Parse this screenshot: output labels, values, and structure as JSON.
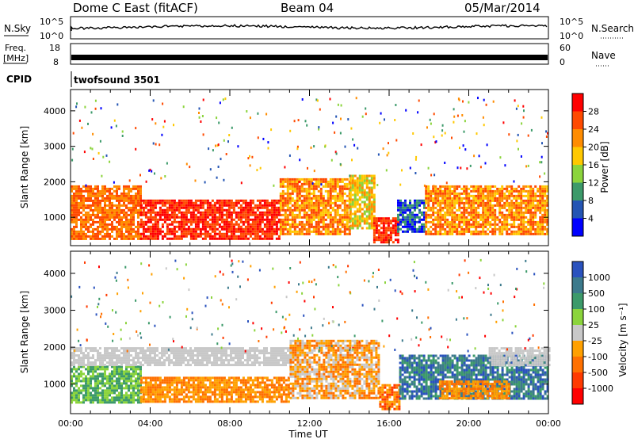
{
  "header": {
    "station": "Dome C East (fitACF)",
    "beam": "Beam 04",
    "date": "05/Mar/2014"
  },
  "noise_panel": {
    "left_label": "N.Sky",
    "right_label": "N.Search",
    "ticks_top": "10^5",
    "ticks_bottom": "10^0"
  },
  "freq_panel": {
    "left_label_line1": "Freq.",
    "left_label_line2": "[MHz]",
    "left_ticks": [
      "18",
      "8"
    ],
    "right_label": "Nave",
    "right_ticks": [
      "60",
      "0"
    ]
  },
  "cpid": {
    "label": "CPID",
    "value": "twofsound 3501"
  },
  "chart_data": [
    {
      "type": "heatmap",
      "name": "power",
      "ylabel": "Slant Range [km]",
      "xlabel": "",
      "x_ticks": [
        "00:00",
        "04:00",
        "08:00",
        "12:00",
        "16:00",
        "20:00",
        "00:00"
      ],
      "x_range_hours": [
        0,
        24
      ],
      "y_ticks": [
        1000,
        2000,
        3000,
        4000
      ],
      "ylim": [
        200,
        4600
      ],
      "colorbar": {
        "label": "Power [dB]",
        "ticks": [
          "28",
          "24",
          "20",
          "16",
          "12",
          "8",
          "4"
        ],
        "colors": [
          "#ff0000",
          "#ff4a00",
          "#ff8c00",
          "#ffc800",
          "#8bd43c",
          "#3c9a6a",
          "#2455b4",
          "#0000ff"
        ]
      },
      "regions": [
        {
          "t0": 0.0,
          "t1": 3.5,
          "r0": 400,
          "r1": 1900,
          "band": [
            1,
            2
          ]
        },
        {
          "t0": 3.5,
          "t1": 10.5,
          "r0": 400,
          "r1": 1500,
          "band": [
            0,
            1
          ]
        },
        {
          "t0": 10.5,
          "t1": 14.0,
          "r0": 500,
          "r1": 2100,
          "band": [
            1,
            3
          ]
        },
        {
          "t0": 14.0,
          "t1": 15.2,
          "r0": 700,
          "r1": 2200,
          "band": [
            2,
            4
          ]
        },
        {
          "t0": 15.2,
          "t1": 16.4,
          "r0": 300,
          "r1": 1000,
          "band": [
            0,
            1
          ]
        },
        {
          "t0": 16.4,
          "t1": 17.8,
          "r0": 600,
          "r1": 1500,
          "band": [
            5,
            7
          ]
        },
        {
          "t0": 17.8,
          "t1": 24.0,
          "r0": 500,
          "r1": 1900,
          "band": [
            1,
            3
          ]
        }
      ]
    },
    {
      "type": "heatmap",
      "name": "velocity",
      "ylabel": "Slant Range [km]",
      "xlabel": "Time UT",
      "x_ticks": [
        "00:00",
        "04:00",
        "08:00",
        "12:00",
        "16:00",
        "20:00",
        "00:00"
      ],
      "x_range_hours": [
        0,
        24
      ],
      "y_ticks": [
        1000,
        2000,
        3000,
        4000
      ],
      "ylim": [
        200,
        4600
      ],
      "colorbar": {
        "label": "Velocity [m s⁻¹]",
        "ticks": [
          "1000",
          "500",
          "100",
          "25",
          "-25",
          "-100",
          "-500",
          "-1000"
        ],
        "colors": [
          "#2a52be",
          "#3c7a8c",
          "#3c9a6a",
          "#8bd43c",
          "#c8c8c8",
          "#ffa000",
          "#ff7000",
          "#ff3a00",
          "#ff0000"
        ]
      },
      "regions": [
        {
          "t0": 0.0,
          "t1": 3.5,
          "r0": 500,
          "r1": 1500,
          "band": [
            2,
            3
          ]
        },
        {
          "t0": 0.0,
          "t1": 11.0,
          "r0": 1500,
          "r1": 2000,
          "band": [
            4,
            4
          ]
        },
        {
          "t0": 3.5,
          "t1": 11.0,
          "r0": 500,
          "r1": 1200,
          "band": [
            5,
            6
          ]
        },
        {
          "t0": 11.0,
          "t1": 15.5,
          "r0": 600,
          "r1": 2200,
          "band": [
            4,
            6
          ]
        },
        {
          "t0": 15.5,
          "t1": 16.5,
          "r0": 300,
          "r1": 1000,
          "band": [
            5,
            7
          ]
        },
        {
          "t0": 16.5,
          "t1": 24.0,
          "r0": 600,
          "r1": 1800,
          "band": [
            0,
            2
          ]
        },
        {
          "t0": 18.5,
          "t1": 22.0,
          "r0": 600,
          "r1": 1100,
          "band": [
            5,
            6
          ]
        },
        {
          "t0": 21.0,
          "t1": 24.0,
          "r0": 1500,
          "r1": 2000,
          "band": [
            4,
            4
          ]
        }
      ]
    }
  ]
}
